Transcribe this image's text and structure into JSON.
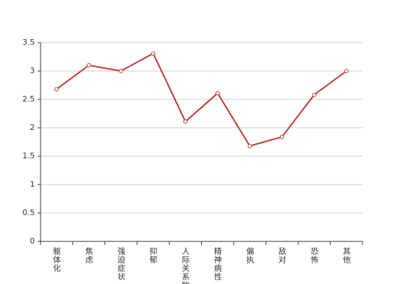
{
  "chart_data": {
    "type": "line",
    "categories": [
      "躯体化",
      "焦虑",
      "强迫症状",
      "抑郁",
      "人际关系敏感",
      "精神病性",
      "偏执",
      "敌对",
      "恐怖",
      "其他"
    ],
    "series": [
      {
        "color": "#c23531",
        "values": [
          2.68,
          3.1,
          3.0,
          3.31,
          2.11,
          2.61,
          1.68,
          1.84,
          2.58,
          3.0
        ]
      }
    ],
    "ylim": [
      0,
      3.5
    ],
    "yticks": [
      0,
      0.5,
      1,
      1.5,
      2,
      2.5,
      3,
      3.5
    ],
    "grid": true
  }
}
